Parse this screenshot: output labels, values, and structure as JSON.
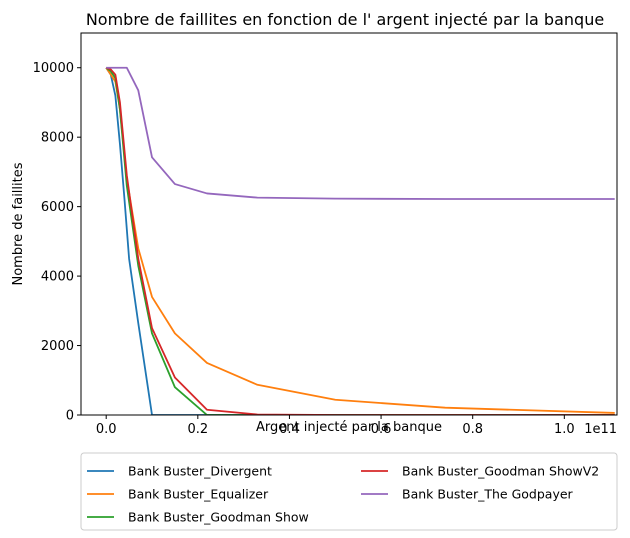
{
  "chart_data": {
    "type": "line",
    "title": "Nombre de faillites en fonction de l' argent injecté par la banque",
    "xlabel": "Argent injecté par la banque",
    "ylabel": "Nombre de faillites",
    "x_offset_label": "1e11",
    "xlim": [
      -0.055,
      1.115
    ],
    "ylim": [
      0,
      11000
    ],
    "x_ticks": [
      0.0,
      0.2,
      0.4,
      0.6,
      0.8,
      1.0
    ],
    "x_tick_labels": [
      "0.0",
      "0.2",
      "0.4",
      "0.6",
      "0.8",
      "1.0"
    ],
    "y_ticks": [
      0,
      2000,
      4000,
      6000,
      8000,
      10000
    ],
    "y_tick_labels": [
      "0",
      "2000",
      "4000",
      "6000",
      "8000",
      "10000"
    ],
    "grid": false,
    "legend_placement": "below plot, two columns",
    "series": [
      {
        "name": "Bank Buster_Divergent",
        "color": "#1f77b4",
        "x": [
          0.0,
          0.01,
          0.02,
          0.03,
          0.04,
          0.05,
          0.07,
          0.1,
          0.15,
          0.22,
          1.11
        ],
        "y": [
          10000,
          9800,
          9200,
          7800,
          6200,
          4500,
          2650,
          0,
          0,
          0,
          0
        ]
      },
      {
        "name": "Bank Buster_Equalizer",
        "color": "#ff7f0e",
        "x": [
          0.0,
          0.01,
          0.02,
          0.03,
          0.045,
          0.07,
          0.1,
          0.15,
          0.22,
          0.33,
          0.5,
          0.74,
          1.11
        ],
        "y": [
          10000,
          9800,
          9600,
          8800,
          6800,
          4800,
          3400,
          2350,
          1500,
          870,
          440,
          210,
          60
        ]
      },
      {
        "name": "Bank Buster_Goodman Show",
        "color": "#2ca02c",
        "x": [
          0.0,
          0.01,
          0.02,
          0.03,
          0.045,
          0.07,
          0.1,
          0.15,
          0.22,
          0.33,
          0.5,
          1.11
        ],
        "y": [
          10000,
          9900,
          9700,
          8800,
          6600,
          4300,
          2350,
          800,
          0,
          0,
          0,
          0
        ]
      },
      {
        "name": "Bank Buster_Goodman ShowV2",
        "color": "#d62728",
        "x": [
          0.0,
          0.01,
          0.02,
          0.03,
          0.045,
          0.07,
          0.1,
          0.15,
          0.22,
          0.33,
          0.5,
          0.74,
          1.11
        ],
        "y": [
          10000,
          9950,
          9800,
          9000,
          6900,
          4500,
          2500,
          1080,
          150,
          15,
          0,
          0,
          0
        ]
      },
      {
        "name": "Bank Buster_The Godpayer",
        "color": "#9467bd",
        "x": [
          0.0,
          0.01,
          0.02,
          0.03,
          0.045,
          0.07,
          0.1,
          0.15,
          0.22,
          0.33,
          0.5,
          0.74,
          1.11
        ],
        "y": [
          10000,
          10000,
          10000,
          10000,
          10000,
          9350,
          7420,
          6650,
          6380,
          6260,
          6230,
          6220,
          6220
        ]
      }
    ]
  }
}
